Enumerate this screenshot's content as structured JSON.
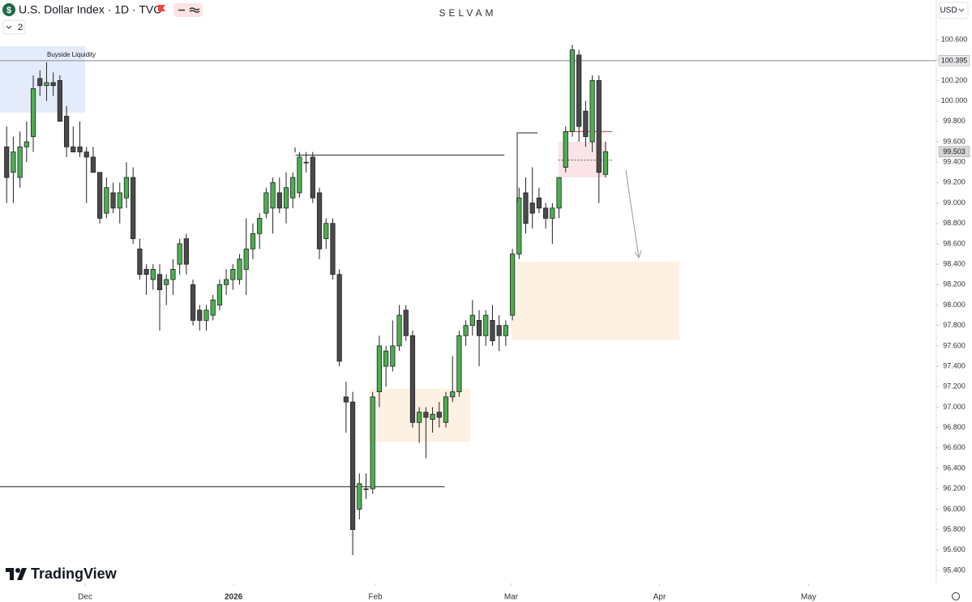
{
  "header": {
    "title": "U.S. Dollar Index · 1D · TVC",
    "author": "SELVAM",
    "currency": "USD",
    "indicator_count": "2",
    "logo": "TradingView"
  },
  "chart_data": {
    "type": "candlestick",
    "up_color": "#4caf50",
    "down_color": "#4a4a4a",
    "open": [
      99.55,
      99.3,
      99.25,
      99.55,
      99.65,
      100.22,
      100.15,
      100.18,
      100.2,
      99.85,
      99.55,
      99.55,
      99.5,
      99.45,
      99.3,
      98.9,
      99.1,
      98.95,
      99.05,
      99.25,
      98.55,
      98.35,
      98.25,
      98.3,
      98.2,
      98.25,
      98.4,
      98.65,
      98.2,
      97.95,
      97.85,
      97.9,
      98.0,
      98.2,
      98.25,
      98.25,
      98.35,
      98.55,
      98.7,
      98.9,
      98.95,
      99.1,
      98.95,
      99.05,
      99.1,
      99.4,
      99.45,
      99.1,
      98.65,
      98.8,
      98.3,
      97.1,
      97.05,
      96.0,
      96.2,
      96.2,
      97.15,
      97.4,
      97.4,
      97.6,
      97.95,
      97.7,
      96.85,
      96.95,
      96.88,
      96.95,
      96.85,
      97.1,
      97.15,
      97.7,
      97.8,
      97.85,
      97.7,
      97.85,
      97.8,
      97.7,
      97.9,
      98.5,
      99.1,
      99.0,
      99.05,
      98.95,
      98.85,
      98.95,
      99.35,
      99.7,
      100.45,
      99.9,
      99.6,
      100.2,
      99.28
    ],
    "high": [
      99.75,
      99.65,
      99.7,
      99.8,
      100.25,
      100.3,
      100.38,
      100.28,
      100.25,
      99.95,
      99.75,
      99.8,
      99.55,
      99.55,
      99.3,
      99.25,
      99.2,
      99.2,
      99.4,
      99.35,
      98.65,
      98.4,
      98.4,
      98.4,
      98.3,
      98.45,
      98.65,
      98.7,
      98.25,
      98.0,
      98.0,
      98.1,
      98.25,
      98.35,
      98.4,
      98.5,
      98.85,
      98.8,
      98.9,
      99.15,
      99.25,
      99.25,
      99.3,
      99.3,
      99.5,
      99.5,
      99.5,
      99.15,
      98.85,
      98.85,
      98.35,
      97.25,
      97.15,
      96.35,
      96.35,
      97.15,
      97.7,
      97.6,
      97.85,
      98.0,
      98.0,
      97.75,
      97.0,
      97.0,
      97.0,
      97.05,
      97.15,
      97.5,
      97.75,
      97.85,
      98.05,
      97.95,
      97.95,
      98.0,
      97.9,
      97.85,
      98.55,
      99.15,
      99.25,
      99.35,
      99.15,
      99.0,
      99.0,
      99.25,
      99.75,
      100.55,
      100.5,
      100.0,
      100.25,
      100.25,
      99.6
    ],
    "low": [
      99.0,
      99.0,
      99.15,
      99.4,
      99.5,
      100.05,
      100.0,
      100.05,
      99.8,
      99.45,
      99.5,
      99.45,
      99.0,
      99.3,
      98.8,
      98.85,
      98.9,
      98.8,
      98.95,
      98.6,
      98.25,
      98.1,
      98.15,
      97.75,
      98.0,
      98.1,
      98.3,
      98.3,
      97.8,
      97.75,
      97.75,
      97.85,
      97.95,
      98.1,
      98.15,
      98.2,
      98.1,
      98.45,
      98.55,
      98.85,
      98.7,
      98.9,
      98.8,
      98.95,
      99.05,
      99.3,
      99.0,
      98.45,
      98.55,
      98.25,
      97.4,
      96.75,
      95.55,
      95.9,
      96.1,
      96.15,
      97.0,
      97.2,
      97.35,
      97.55,
      97.65,
      96.8,
      96.65,
      96.5,
      96.75,
      96.8,
      96.8,
      97.05,
      97.1,
      97.6,
      97.7,
      97.4,
      97.6,
      97.6,
      97.55,
      97.6,
      97.85,
      98.45,
      98.7,
      98.75,
      98.9,
      98.75,
      98.6,
      98.85,
      99.3,
      99.65,
      99.6,
      99.55,
      99.5,
      99.0,
      99.25
    ],
    "close": [
      99.25,
      99.5,
      99.55,
      99.6,
      100.12,
      100.15,
      100.18,
      100.15,
      99.8,
      99.55,
      99.5,
      99.5,
      99.45,
      99.3,
      98.85,
      99.15,
      98.95,
      99.1,
      99.25,
      98.65,
      98.3,
      98.3,
      98.35,
      98.15,
      98.25,
      98.35,
      98.6,
      98.4,
      97.85,
      97.85,
      97.95,
      98.05,
      98.2,
      98.25,
      98.35,
      98.45,
      98.55,
      98.7,
      98.85,
      99.1,
      99.2,
      98.95,
      99.15,
      99.25,
      99.45,
      99.4,
      99.05,
      98.55,
      98.8,
      98.3,
      97.45,
      97.05,
      95.8,
      96.25,
      96.2,
      97.1,
      97.6,
      97.55,
      97.6,
      97.9,
      97.7,
      96.85,
      96.95,
      96.9,
      96.93,
      96.9,
      97.1,
      97.15,
      97.7,
      97.8,
      97.9,
      97.7,
      97.9,
      97.65,
      97.7,
      97.8,
      98.5,
      99.05,
      98.8,
      98.9,
      98.95,
      98.85,
      98.95,
      99.25,
      99.7,
      100.5,
      99.75,
      99.65,
      100.2,
      99.3,
      99.503
    ],
    "xlim": [
      -1,
      139.7
    ],
    "xticks": [
      {
        "value": 11.8,
        "label": "Dec"
      },
      {
        "value": 34.1,
        "label": "2026"
      },
      {
        "value": 55.4,
        "label": "Feb"
      },
      {
        "value": 75.8,
        "label": "Mar"
      },
      {
        "value": 98.1,
        "label": "Apr"
      },
      {
        "value": 120.5,
        "label": "May"
      }
    ],
    "ylim": [
      95.273,
      100.989
    ],
    "yticks": [
      {
        "value": 95.4,
        "label": "95.400"
      },
      {
        "value": 95.6,
        "label": "95.600"
      },
      {
        "value": 95.8,
        "label": "95.800"
      },
      {
        "value": 96.0,
        "label": "96.000"
      },
      {
        "value": 96.2,
        "label": "96.200"
      },
      {
        "value": 96.4,
        "label": "96.400"
      },
      {
        "value": 96.6,
        "label": "96.600"
      },
      {
        "value": 96.8,
        "label": "96.800"
      },
      {
        "value": 97.0,
        "label": "97.000"
      },
      {
        "value": 97.2,
        "label": "97.200"
      },
      {
        "value": 97.4,
        "label": "97.400"
      },
      {
        "value": 97.6,
        "label": "97.600"
      },
      {
        "value": 97.8,
        "label": "97.800"
      },
      {
        "value": 98.0,
        "label": "98.000"
      },
      {
        "value": 98.2,
        "label": "98.200"
      },
      {
        "value": 98.4,
        "label": "98.400"
      },
      {
        "value": 98.6,
        "label": "98.600"
      },
      {
        "value": 98.8,
        "label": "98.800"
      },
      {
        "value": 99.0,
        "label": "99.000"
      },
      {
        "value": 99.2,
        "label": "99.200"
      },
      {
        "value": 99.4,
        "label": "99.400"
      },
      {
        "value": 99.6,
        "label": "99.600"
      },
      {
        "value": 99.8,
        "label": "99.800"
      },
      {
        "value": 100.0,
        "label": "100.000"
      },
      {
        "value": 100.2,
        "label": "100.200"
      },
      {
        "value": 100.4,
        "label": "100.400"
      },
      {
        "value": 100.6,
        "label": "100.600"
      }
    ],
    "buyside_liquidity": {
      "label": "Buyside Liquidity",
      "price": {
        "value": 100.395,
        "label": "100.395"
      }
    },
    "last_price": {
      "value": 99.503,
      "label": "99.503"
    },
    "zones": [
      {
        "x": [
          -1,
          11.8
        ],
        "y": [
          99.885,
          100.535
        ],
        "color": "#e4ecfb"
      },
      {
        "x": [
          54.4,
          69.7
        ],
        "y": [
          96.66,
          97.18
        ],
        "color": "#fdf1e3"
      },
      {
        "x": [
          75.8,
          101.1
        ],
        "y": [
          97.655,
          98.425
        ],
        "color": "#fdf1e3"
      },
      {
        "x": [
          82.9,
          90.1
        ],
        "y": [
          99.25,
          99.6
        ],
        "color": "#fbe4e7"
      }
    ],
    "lines": [
      {
        "x": [
          43.4,
          74.8
        ],
        "price": 99.47,
        "color": "#222"
      },
      {
        "x": [
          -1,
          65.8
        ],
        "price": 96.22,
        "color": "#222"
      },
      {
        "x": [
          83.9,
          91
        ],
        "price": 99.7,
        "color": "#e53935"
      },
      {
        "x": [
          82.9,
          91
        ],
        "price": 99.42,
        "color": "#555"
      }
    ]
  }
}
